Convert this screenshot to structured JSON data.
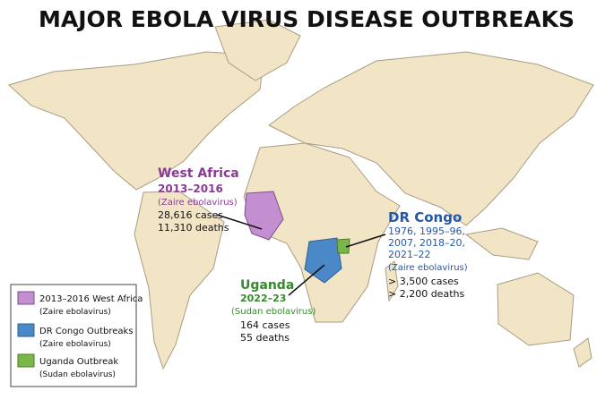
{
  "title": "MAJOR EBOLA VIRUS DISEASE OUTBREAKS",
  "callouts": [
    {
      "region": "West Africa",
      "lines": [
        "2013–2016",
        "(Zaire ebolavirus)",
        "28,616 cases",
        "11,310 deaths"
      ]
    },
    {
      "region": "DR Congo",
      "lines": [
        "1976, 1995–96,",
        "2007, 2018–20,",
        "2021–22",
        "(Zaire ebolavirus)",
        "> 3,500 cases",
        "> 2,200 deaths"
      ]
    },
    {
      "region": "Uganda",
      "lines": [
        "2022–23",
        "(Sudan ebolavirus)",
        "164 cases",
        "55 deaths"
      ]
    }
  ],
  "legend": [
    {
      "label": "2013–2016 West Africa",
      "sub": "(Zaire ebolavirus)"
    },
    {
      "label": "DR Congo Outbreaks",
      "sub": "(Zaire ebolavirus)"
    },
    {
      "label": "Uganda Outbreak",
      "sub": "(Sudan ebolavirus)"
    }
  ]
}
